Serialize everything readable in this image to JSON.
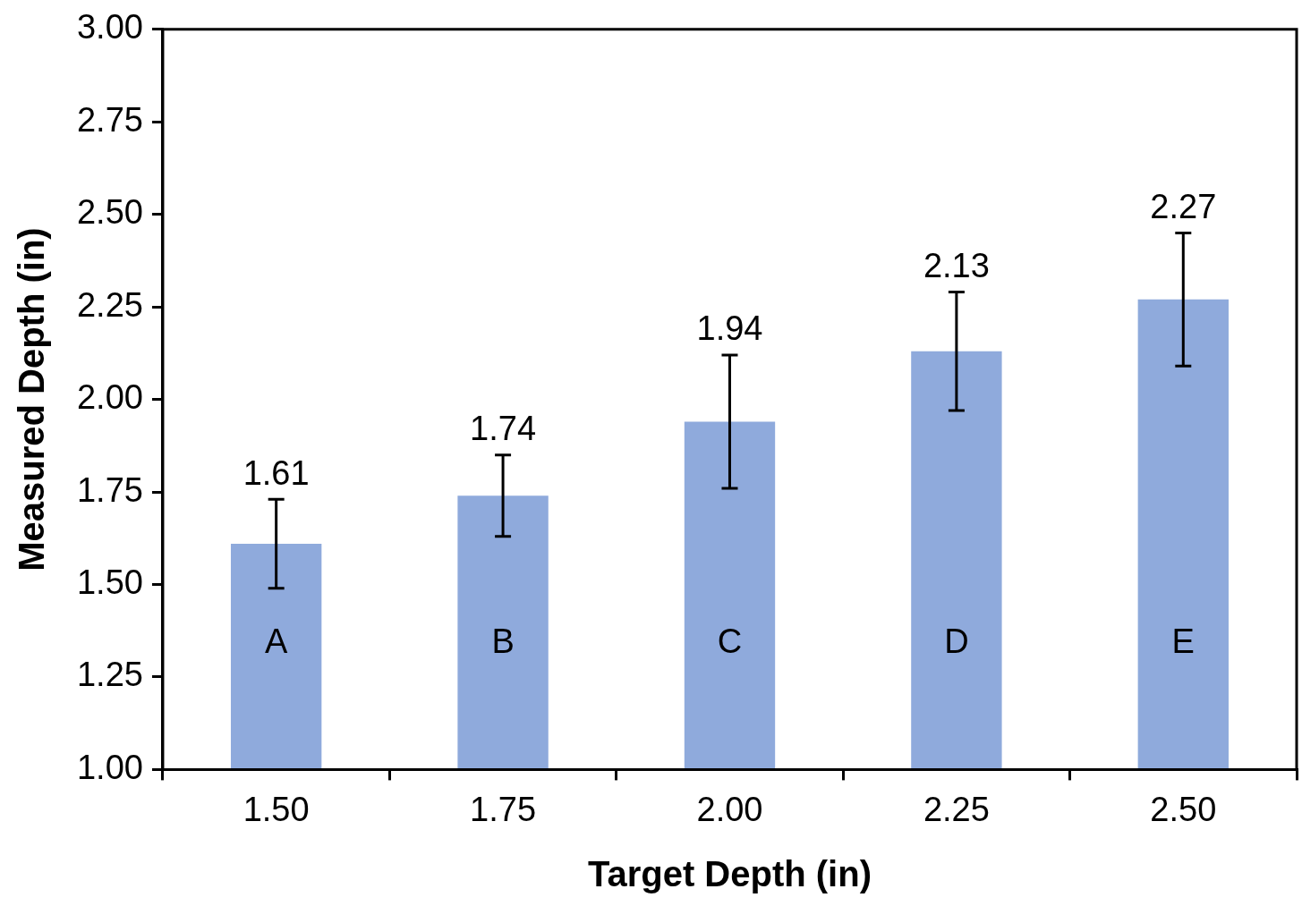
{
  "chart_data": {
    "type": "bar",
    "xlabel": "Target Depth (in)",
    "ylabel": "Measured Depth (in)",
    "categories": [
      "1.50",
      "1.75",
      "2.00",
      "2.25",
      "2.50"
    ],
    "values": [
      1.61,
      1.74,
      1.94,
      2.13,
      2.27
    ],
    "errors": [
      0.12,
      0.11,
      0.18,
      0.16,
      0.18
    ],
    "color": "#8faadc",
    "data_labels": true,
    "ylim": [
      1,
      3
    ],
    "yticks": [
      {
        "value": 1,
        "label": "1.00"
      },
      {
        "value": 1.25,
        "label": "1.25"
      },
      {
        "value": 1.5,
        "label": "1.50"
      },
      {
        "value": 1.75,
        "label": "1.75"
      },
      {
        "value": 2,
        "label": "2.00"
      },
      {
        "value": 2.25,
        "label": "2.25"
      },
      {
        "value": 2.5,
        "label": "2.50"
      },
      {
        "value": 2.75,
        "label": "2.75"
      },
      {
        "value": 3,
        "label": "3.00"
      }
    ],
    "annotations": [
      "A",
      "B",
      "C",
      "D",
      "E"
    ]
  }
}
